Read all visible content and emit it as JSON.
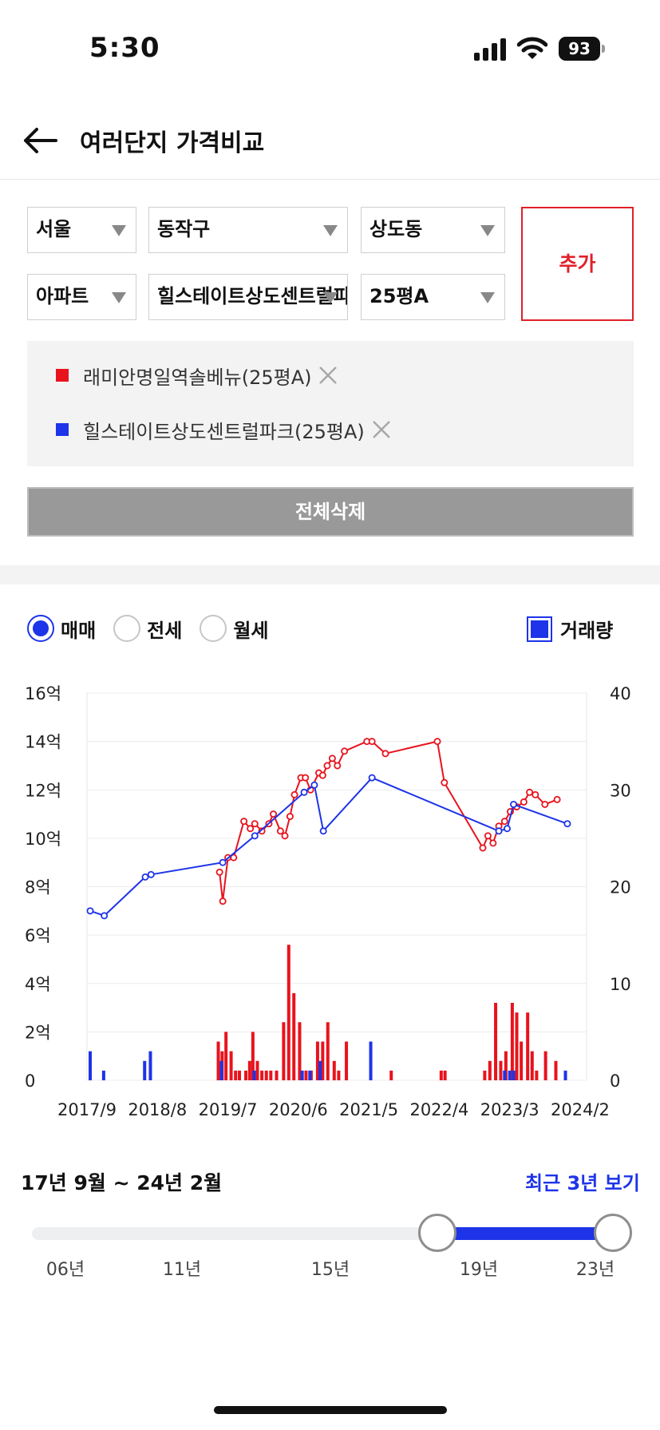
{
  "status_bar": {
    "time": "5:30",
    "battery": "93"
  },
  "header": {
    "title": "여러단지 가격비교"
  },
  "filters": {
    "city": "서울",
    "district": "동작구",
    "dong": "상도동",
    "type": "아파트",
    "complex": "힐스테이트상도센트럴파크",
    "size": "25평A",
    "add_label": "추가"
  },
  "selected": [
    {
      "label": "래미안명일역솔베뉴(25평A)",
      "color": "#e8131d"
    },
    {
      "label": "힐스테이트상도센트럴파크(25평A)",
      "color": "#1d34e8"
    }
  ],
  "clear_all_label": "전체삭제",
  "trade_types": [
    {
      "label": "매매",
      "selected": true
    },
    {
      "label": "전세",
      "selected": false
    },
    {
      "label": "월세",
      "selected": false
    }
  ],
  "volume_toggle": {
    "label": "거래량",
    "checked": true
  },
  "chart_data": {
    "type": "line",
    "x_unit": "months since 2017/9 (x tick labels are dates)",
    "xlim": [
      0,
      78
    ],
    "x_ticks": [
      {
        "x": 0,
        "label": "2017/9"
      },
      {
        "x": 11,
        "label": "2018/8"
      },
      {
        "x": 22,
        "label": "2019/7"
      },
      {
        "x": 33,
        "label": "2020/6"
      },
      {
        "x": 44,
        "label": "2021/5"
      },
      {
        "x": 55,
        "label": "2022/4"
      },
      {
        "x": 66,
        "label": "2023/3"
      },
      {
        "x": 77,
        "label": "2024/2"
      }
    ],
    "y_left": {
      "ylim": [
        0,
        16
      ],
      "ticks": [
        "0",
        "2억",
        "4억",
        "6억",
        "8억",
        "10억",
        "12억",
        "14억",
        "16억"
      ],
      "unit": "억"
    },
    "y_right": {
      "ylim": [
        0,
        40
      ],
      "ticks": [
        "0",
        "10",
        "20",
        "30",
        "40"
      ]
    },
    "grid": true,
    "series": [
      {
        "name": "래미안명일역솔베뉴(25평A)",
        "color": "#e8131d",
        "price_points": [
          [
            20.7,
            8.6
          ],
          [
            21.2,
            7.4
          ],
          [
            22.0,
            9.2
          ],
          [
            22.9,
            9.2
          ],
          [
            24.5,
            10.7
          ],
          [
            25.5,
            10.4
          ],
          [
            26.2,
            10.6
          ],
          [
            27.3,
            10.3
          ],
          [
            28.4,
            10.6
          ],
          [
            29.1,
            11.0
          ],
          [
            30.2,
            10.3
          ],
          [
            30.9,
            10.1
          ],
          [
            31.7,
            10.9
          ],
          [
            32.4,
            11.8
          ],
          [
            33.4,
            12.5
          ],
          [
            34.1,
            12.5
          ],
          [
            34.9,
            12.0
          ],
          [
            36.2,
            12.7
          ],
          [
            36.8,
            12.6
          ],
          [
            37.5,
            13.0
          ],
          [
            38.3,
            13.3
          ],
          [
            39.1,
            13.0
          ],
          [
            40.2,
            13.6
          ],
          [
            43.7,
            14.0
          ],
          [
            44.5,
            14.0
          ],
          [
            46.6,
            13.5
          ],
          [
            54.7,
            14.0
          ],
          [
            55.8,
            12.3
          ],
          [
            61.8,
            9.6
          ],
          [
            62.6,
            10.1
          ],
          [
            63.4,
            9.8
          ],
          [
            64.3,
            10.5
          ],
          [
            65.2,
            10.7
          ],
          [
            66.1,
            11.1
          ],
          [
            67.1,
            11.3
          ],
          [
            68.2,
            11.5
          ],
          [
            69.1,
            11.9
          ],
          [
            70.0,
            11.8
          ],
          [
            71.5,
            11.4
          ],
          [
            73.4,
            11.6
          ]
        ],
        "volume_points": [
          [
            20.5,
            4
          ],
          [
            21.1,
            3
          ],
          [
            21.7,
            5
          ],
          [
            22.5,
            3
          ],
          [
            23.2,
            1
          ],
          [
            23.8,
            1
          ],
          [
            24.8,
            1
          ],
          [
            25.4,
            2
          ],
          [
            25.9,
            5
          ],
          [
            26.6,
            2
          ],
          [
            27.3,
            1
          ],
          [
            28.0,
            1
          ],
          [
            28.7,
            1
          ],
          [
            29.6,
            1
          ],
          [
            30.7,
            6
          ],
          [
            31.5,
            14
          ],
          [
            32.3,
            9
          ],
          [
            33.2,
            6
          ],
          [
            34.2,
            1
          ],
          [
            35.0,
            1
          ],
          [
            36.0,
            4
          ],
          [
            36.8,
            4
          ],
          [
            37.6,
            6
          ],
          [
            38.6,
            2
          ],
          [
            39.3,
            1
          ],
          [
            40.5,
            4
          ],
          [
            47.5,
            1
          ],
          [
            55.3,
            1
          ],
          [
            55.9,
            1
          ],
          [
            62.1,
            1
          ],
          [
            62.9,
            2
          ],
          [
            63.8,
            8
          ],
          [
            64.6,
            2
          ],
          [
            65.4,
            3
          ],
          [
            66.4,
            8
          ],
          [
            67.1,
            7
          ],
          [
            67.8,
            4
          ],
          [
            68.8,
            7
          ],
          [
            69.5,
            3
          ],
          [
            70.2,
            1
          ],
          [
            71.6,
            3
          ],
          [
            73.2,
            2
          ]
        ]
      },
      {
        "name": "힐스테이트상도센트럴파크(25평A)",
        "color": "#1d34e8",
        "price_points": [
          [
            0.5,
            7.0
          ],
          [
            2.7,
            6.8
          ],
          [
            9.1,
            8.4
          ],
          [
            10.0,
            8.5
          ],
          [
            21.2,
            9.0
          ],
          [
            26.2,
            10.1
          ],
          [
            33.9,
            11.9
          ],
          [
            35.5,
            12.2
          ],
          [
            36.9,
            10.3
          ],
          [
            44.5,
            12.5
          ],
          [
            64.3,
            10.3
          ],
          [
            65.6,
            10.4
          ],
          [
            66.6,
            11.4
          ],
          [
            75.0,
            10.6
          ]
        ],
        "volume_points": [
          [
            0.5,
            3
          ],
          [
            2.6,
            1
          ],
          [
            9.0,
            2
          ],
          [
            9.9,
            3
          ],
          [
            21.0,
            2
          ],
          [
            26.1,
            1
          ],
          [
            33.6,
            1
          ],
          [
            34.8,
            1
          ],
          [
            36.4,
            2
          ],
          [
            44.3,
            4
          ],
          [
            65.2,
            1
          ],
          [
            66.0,
            1
          ],
          [
            66.6,
            1
          ],
          [
            74.7,
            1
          ]
        ]
      }
    ]
  },
  "range": {
    "label": "17년 9월 ~ 24년 2월",
    "recent_label": "최근 3년 보기",
    "start_fraction": 0.677,
    "end_fraction": 0.97,
    "ticks": [
      "06년",
      "11년",
      "15년",
      "19년",
      "23년"
    ]
  }
}
